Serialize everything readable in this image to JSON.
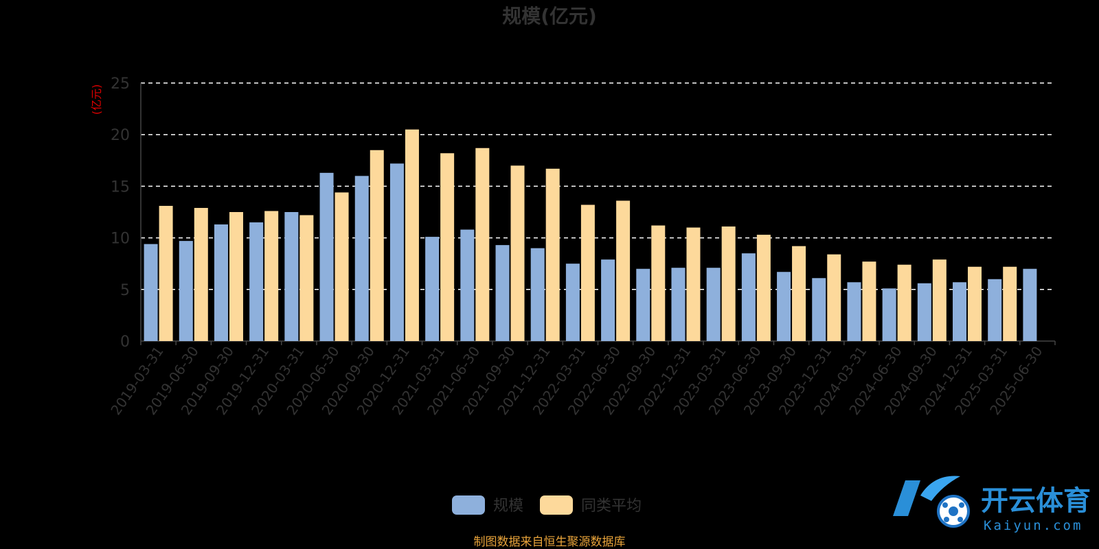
{
  "chart_data": {
    "type": "bar",
    "title": "规模(亿元)",
    "y_unit_label": "(亿元)",
    "ylim": [
      0,
      25
    ],
    "yticks": [
      0,
      5,
      10,
      15,
      20,
      25
    ],
    "grid": "dashed-horizontal",
    "categories": [
      "2019-03-31",
      "2019-06-30",
      "2019-09-30",
      "2019-12-31",
      "2020-03-31",
      "2020-06-30",
      "2020-09-30",
      "2020-12-31",
      "2021-03-31",
      "2021-06-30",
      "2021-09-30",
      "2021-12-31",
      "2022-03-31",
      "2022-06-30",
      "2022-09-30",
      "2022-12-31",
      "2023-03-31",
      "2023-06-30",
      "2023-09-30",
      "2023-12-31",
      "2024-03-31",
      "2024-06-30",
      "2024-09-30",
      "2024-12-31",
      "2025-03-31",
      "2025-06-30"
    ],
    "series": [
      {
        "name": "规模",
        "color": "#8eb0dc",
        "values": [
          9.4,
          9.7,
          11.3,
          11.5,
          12.5,
          16.3,
          16.0,
          17.2,
          10.1,
          10.8,
          9.3,
          9.0,
          7.5,
          7.9,
          7.0,
          7.1,
          7.1,
          8.5,
          6.7,
          6.1,
          5.7,
          5.1,
          5.6,
          5.7,
          6.0,
          7.0
        ]
      },
      {
        "name": "同类平均",
        "color": "#fdd99b",
        "values": [
          13.1,
          12.9,
          12.5,
          12.6,
          12.2,
          14.4,
          18.5,
          20.5,
          18.2,
          18.7,
          17.0,
          16.7,
          13.2,
          13.6,
          11.2,
          11.0,
          11.1,
          10.3,
          9.2,
          8.4,
          7.7,
          7.4,
          7.9,
          7.2,
          7.2,
          null
        ]
      }
    ],
    "legend_position": "bottom-center",
    "source_note": "制图数据来自恒生聚源数据库"
  },
  "watermark": {
    "text": "开云体育",
    "subtext": "Kaiyun.com"
  }
}
